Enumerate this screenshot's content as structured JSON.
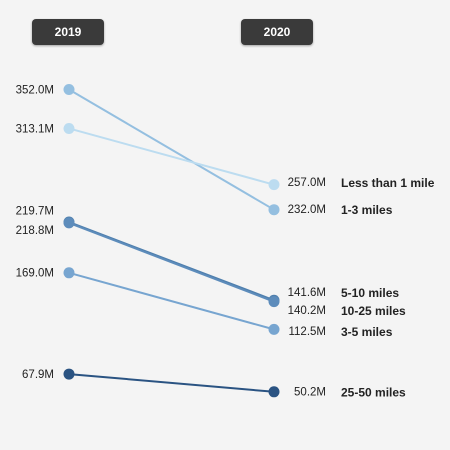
{
  "chart_data": {
    "type": "line",
    "x": [
      "2019",
      "2020"
    ],
    "series": [
      {
        "name": "Less than 1 mile",
        "values": [
          313.1,
          257.0
        ],
        "labels": [
          "313.1M",
          "257.0M"
        ],
        "color": "#bcdcf0"
      },
      {
        "name": "1-3 miles",
        "values": [
          352.0,
          232.0
        ],
        "labels": [
          "352.0M",
          "232.0M"
        ],
        "color": "#94bfe0"
      },
      {
        "name": "5-10 miles",
        "values": [
          219.7,
          141.6
        ],
        "labels": [
          "219.7M",
          "141.6M"
        ],
        "color": "#4f7fad"
      },
      {
        "name": "10-25 miles",
        "values": [
          218.8,
          140.2
        ],
        "labels": [
          "218.8M",
          "140.2M"
        ],
        "color": "#5d8cbb"
      },
      {
        "name": "3-5 miles",
        "values": [
          169.0,
          112.5
        ],
        "labels": [
          "169.0M",
          "112.5M"
        ],
        "color": "#77a5d0"
      },
      {
        "name": "25-50 miles",
        "values": [
          67.9,
          50.2
        ],
        "labels": [
          "67.9M",
          "50.2M"
        ],
        "color": "#2a5382"
      }
    ],
    "ylim": [
      0,
      370
    ],
    "grid": false,
    "legend": "none"
  }
}
